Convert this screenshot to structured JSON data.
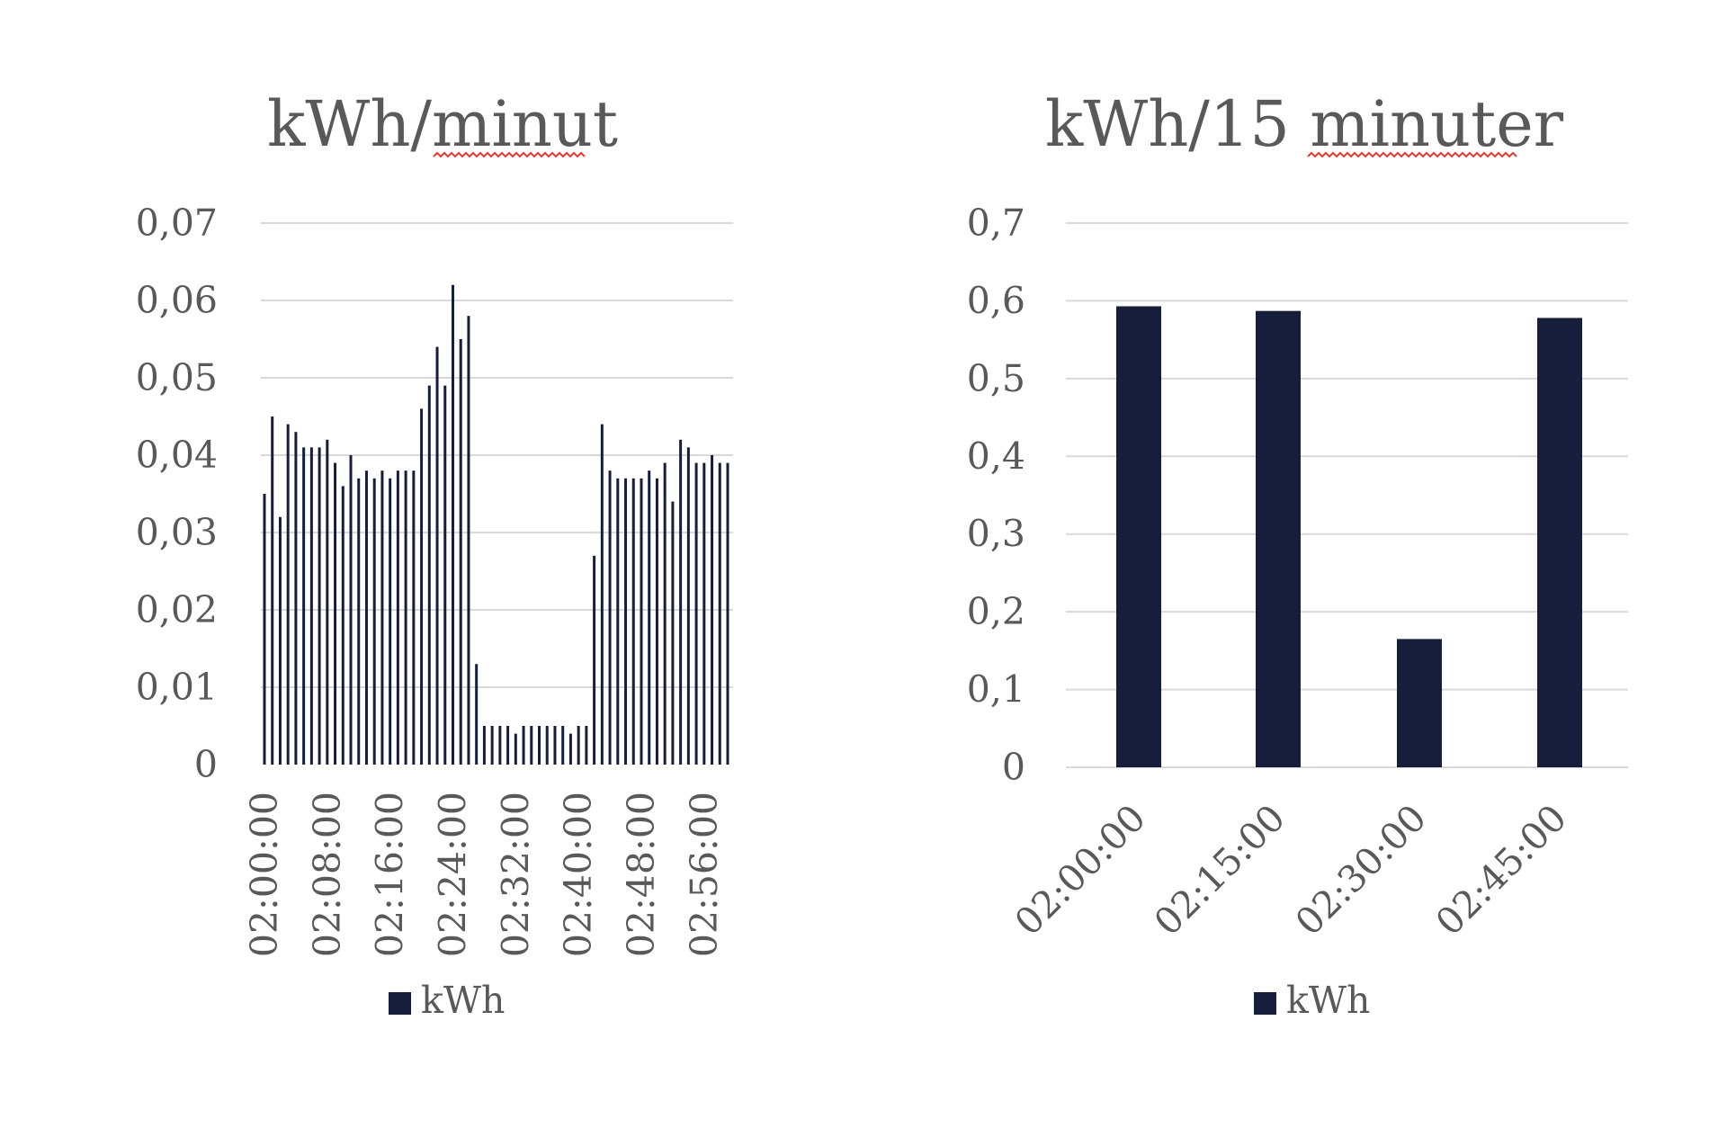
{
  "colors": {
    "bar": "#161e3b",
    "grid": "#d9d9d9",
    "text": "#595959",
    "spellcheck": "#e8392f"
  },
  "chart_data": [
    {
      "type": "bar",
      "title": "kWh/minut",
      "xlabel": "",
      "ylabel": "",
      "ylim": [
        0,
        0.07
      ],
      "yticks": [
        "0",
        "0,01",
        "0,02",
        "0,03",
        "0,04",
        "0,05",
        "0,06",
        "0,07"
      ],
      "xtick_labels": [
        "02:00:00",
        "02:08:00",
        "02:16:00",
        "02:24:00",
        "02:32:00",
        "02:40:00",
        "02:48:00",
        "02:56:00"
      ],
      "grid": true,
      "legend": "bottom",
      "categories": [
        "02:00:00",
        "02:01:00",
        "02:02:00",
        "02:03:00",
        "02:04:00",
        "02:05:00",
        "02:06:00",
        "02:07:00",
        "02:08:00",
        "02:09:00",
        "02:10:00",
        "02:11:00",
        "02:12:00",
        "02:13:00",
        "02:14:00",
        "02:15:00",
        "02:16:00",
        "02:17:00",
        "02:18:00",
        "02:19:00",
        "02:20:00",
        "02:21:00",
        "02:22:00",
        "02:23:00",
        "02:24:00",
        "02:25:00",
        "02:26:00",
        "02:27:00",
        "02:28:00",
        "02:29:00",
        "02:30:00",
        "02:31:00",
        "02:32:00",
        "02:33:00",
        "02:34:00",
        "02:35:00",
        "02:36:00",
        "02:37:00",
        "02:38:00",
        "02:39:00",
        "02:40:00",
        "02:41:00",
        "02:42:00",
        "02:43:00",
        "02:44:00",
        "02:45:00",
        "02:46:00",
        "02:47:00",
        "02:48:00",
        "02:49:00",
        "02:50:00",
        "02:51:00",
        "02:52:00",
        "02:53:00",
        "02:54:00",
        "02:55:00",
        "02:56:00",
        "02:57:00",
        "02:58:00",
        "02:59:00"
      ],
      "series": [
        {
          "name": "kWh",
          "values": [
            0.035,
            0.045,
            0.032,
            0.044,
            0.043,
            0.041,
            0.041,
            0.041,
            0.042,
            0.039,
            0.036,
            0.04,
            0.037,
            0.038,
            0.037,
            0.038,
            0.037,
            0.038,
            0.038,
            0.038,
            0.046,
            0.049,
            0.054,
            0.049,
            0.062,
            0.055,
            0.058,
            0.013,
            0.005,
            0.005,
            0.005,
            0.005,
            0.004,
            0.005,
            0.005,
            0.005,
            0.005,
            0.005,
            0.005,
            0.004,
            0.005,
            0.005,
            0.027,
            0.044,
            0.038,
            0.037,
            0.037,
            0.037,
            0.037,
            0.038,
            0.037,
            0.039,
            0.034,
            0.042,
            0.041,
            0.039,
            0.039,
            0.04,
            0.039,
            0.039
          ]
        }
      ]
    },
    {
      "type": "bar",
      "title": "kWh/15 minuter",
      "xlabel": "",
      "ylabel": "",
      "ylim": [
        0,
        0.7
      ],
      "yticks": [
        "0",
        "0,1",
        "0,2",
        "0,3",
        "0,4",
        "0,5",
        "0,6",
        "0,7"
      ],
      "grid": true,
      "legend": "bottom",
      "categories": [
        "02:00:00",
        "02:15:00",
        "02:30:00",
        "02:45:00"
      ],
      "series": [
        {
          "name": "kWh",
          "values": [
            0.593,
            0.587,
            0.165,
            0.578
          ]
        }
      ]
    }
  ]
}
